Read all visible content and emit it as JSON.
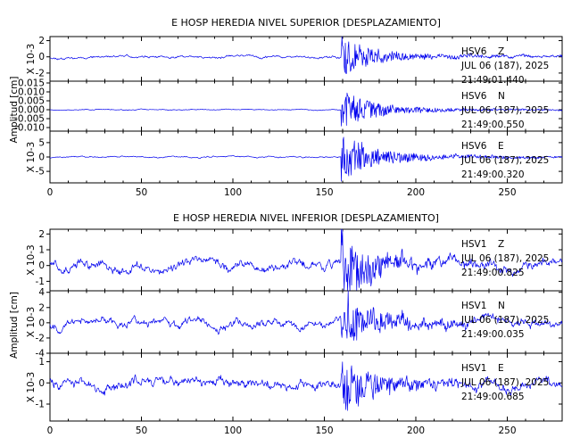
{
  "chart_data": [
    {
      "type": "line",
      "title": "E HOSP HEREDIA NIVEL SUPERIOR [DESPLAZAMIENTO]",
      "ylabel": "Amplitud [cm]",
      "xlim": [
        0,
        280
      ],
      "x_ticks": [
        "0",
        "50",
        "100",
        "150",
        "200",
        "250"
      ],
      "series": [
        {
          "name": "HSV6 Z",
          "station": "HSV6",
          "component": "Z",
          "date": "JUL 06 (187), 2025",
          "time": "21:49:01.440",
          "scale_label": "X 10-3",
          "ylim": [
            -3,
            2.5
          ],
          "y_ticks": [
            "2",
            "0",
            "-2"
          ],
          "event_time": 160,
          "noise_amp": 0.25,
          "event_amp": 2.2,
          "seed": 11
        },
        {
          "name": "HSV6 N",
          "station": "HSV6",
          "component": "N",
          "date": "JUL 06 (187), 2025",
          "time": "21:49:00.550",
          "scale_label": "",
          "ylim": [
            -0.012,
            0.016
          ],
          "y_ticks": [
            "0.015",
            "0.010",
            "0.005",
            "0.000",
            "-0.005",
            "-0.010"
          ],
          "event_time": 160,
          "noise_amp": 0.0004,
          "event_amp": 0.01,
          "seed": 23
        },
        {
          "name": "HSV6 E",
          "station": "HSV6",
          "component": "E",
          "date": "JUL 06 (187), 2025",
          "time": "21:49:00.320",
          "scale_label": "X 10-3",
          "ylim": [
            -9,
            9
          ],
          "y_ticks": [
            "5",
            "0",
            "-5"
          ],
          "event_time": 160,
          "noise_amp": 0.4,
          "event_amp": 8,
          "seed": 37
        }
      ]
    },
    {
      "type": "line",
      "title": "E HOSP HEREDIA NIVEL INFERIOR [DESPLAZAMIENTO]",
      "ylabel": "Amplitud [cm]",
      "xlim": [
        0,
        280
      ],
      "x_ticks": [
        "0",
        "50",
        "100",
        "150",
        "200",
        "250"
      ],
      "series": [
        {
          "name": "HSV1 Z",
          "station": "HSV1",
          "component": "Z",
          "date": "JUL 06 (187), 2025",
          "time": "21:49:00.825",
          "scale_label": "X 10-3",
          "ylim": [
            -1.6,
            2.3
          ],
          "y_ticks": [
            "2",
            "1",
            "0",
            "-1"
          ],
          "event_time": 160,
          "noise_amp": 0.5,
          "event_amp": 1.9,
          "seed": 51
        },
        {
          "name": "HSV1 N",
          "station": "HSV1",
          "component": "N",
          "date": "JUL 06 (187), 2025",
          "time": "21:49:00.035",
          "scale_label": "X 10-3",
          "ylim": [
            -4,
            4.2
          ],
          "y_ticks": [
            "4",
            "2",
            "0",
            "-2",
            "-4"
          ],
          "event_time": 160,
          "noise_amp": 0.9,
          "event_amp": 3.5,
          "seed": 67
        },
        {
          "name": "HSV1 E",
          "station": "HSV1",
          "component": "E",
          "date": "JUL 06 (187), 2025",
          "time": "21:49:00.685",
          "scale_label": "X 10-3",
          "ylim": [
            -1.8,
            1.4
          ],
          "y_ticks": [
            "1",
            "0",
            "-1"
          ],
          "event_time": 160,
          "noise_amp": 0.4,
          "event_amp": 1.2,
          "seed": 83
        }
      ]
    }
  ]
}
